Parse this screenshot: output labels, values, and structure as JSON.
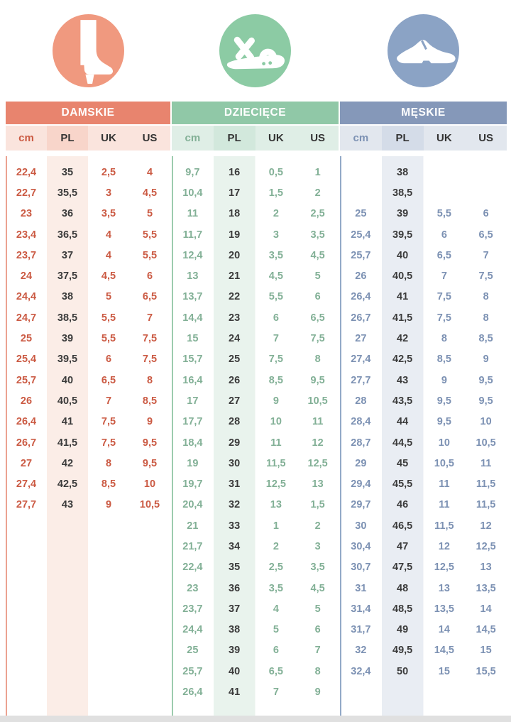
{
  "chart_data": [
    {
      "type": "table",
      "title": "DAMSKIE",
      "columns": [
        "cm",
        "PL",
        "UK",
        "US"
      ],
      "rows": [
        [
          "22,4",
          "35",
          "2,5",
          "4"
        ],
        [
          "22,7",
          "35,5",
          "3",
          "4,5"
        ],
        [
          "23",
          "36",
          "3,5",
          "5"
        ],
        [
          "23,4",
          "36,5",
          "4",
          "5,5"
        ],
        [
          "23,7",
          "37",
          "4",
          "5,5"
        ],
        [
          "24",
          "37,5",
          "4,5",
          "6"
        ],
        [
          "24,4",
          "38",
          "5",
          "6,5"
        ],
        [
          "24,7",
          "38,5",
          "5,5",
          "7"
        ],
        [
          "25",
          "39",
          "5,5",
          "7,5"
        ],
        [
          "25,4",
          "39,5",
          "6",
          "7,5"
        ],
        [
          "25,7",
          "40",
          "6,5",
          "8"
        ],
        [
          "26",
          "40,5",
          "7",
          "8,5"
        ],
        [
          "26,4",
          "41",
          "7,5",
          "9"
        ],
        [
          "26,7",
          "41,5",
          "7,5",
          "9,5"
        ],
        [
          "27",
          "42",
          "8",
          "9,5"
        ],
        [
          "27,4",
          "42,5",
          "8,5",
          "10"
        ],
        [
          "27,7",
          "43",
          "9",
          "10,5"
        ]
      ]
    },
    {
      "type": "table",
      "title": "DZIECIĘCE",
      "columns": [
        "cm",
        "PL",
        "UK",
        "US"
      ],
      "rows": [
        [
          "9,7",
          "16",
          "0,5",
          "1"
        ],
        [
          "10,4",
          "17",
          "1,5",
          "2"
        ],
        [
          "11",
          "18",
          "2",
          "2,5"
        ],
        [
          "11,7",
          "19",
          "3",
          "3,5"
        ],
        [
          "12,4",
          "20",
          "3,5",
          "4,5"
        ],
        [
          "13",
          "21",
          "4,5",
          "5"
        ],
        [
          "13,7",
          "22",
          "5,5",
          "6"
        ],
        [
          "14,4",
          "23",
          "6",
          "6,5"
        ],
        [
          "15",
          "24",
          "7",
          "7,5"
        ],
        [
          "15,7",
          "25",
          "7,5",
          "8"
        ],
        [
          "16,4",
          "26",
          "8,5",
          "9,5"
        ],
        [
          "17",
          "27",
          "9",
          "10,5"
        ],
        [
          "17,7",
          "28",
          "10",
          "11"
        ],
        [
          "18,4",
          "29",
          "11",
          "12"
        ],
        [
          "19",
          "30",
          "11,5",
          "12,5"
        ],
        [
          "19,7",
          "31",
          "12,5",
          "13"
        ],
        [
          "20,4",
          "32",
          "13",
          "1,5"
        ],
        [
          "21",
          "33",
          "1",
          "2"
        ],
        [
          "21,7",
          "34",
          "2",
          "3"
        ],
        [
          "22,4",
          "35",
          "2,5",
          "3,5"
        ],
        [
          "23",
          "36",
          "3,5",
          "4,5"
        ],
        [
          "23,7",
          "37",
          "4",
          "5"
        ],
        [
          "24,4",
          "38",
          "5",
          "6"
        ],
        [
          "25",
          "39",
          "6",
          "7"
        ],
        [
          "25,7",
          "40",
          "6,5",
          "8"
        ],
        [
          "26,4",
          "41",
          "7",
          "9"
        ]
      ]
    },
    {
      "type": "table",
      "title": "MĘSKIE",
      "columns": [
        "cm",
        "PL",
        "UK",
        "US"
      ],
      "rows": [
        [
          "",
          "38",
          "",
          ""
        ],
        [
          "",
          "38,5",
          "",
          ""
        ],
        [
          "25",
          "39",
          "5,5",
          "6"
        ],
        [
          "25,4",
          "39,5",
          "6",
          "6,5"
        ],
        [
          "25,7",
          "40",
          "6,5",
          "7"
        ],
        [
          "26",
          "40,5",
          "7",
          "7,5"
        ],
        [
          "26,4",
          "41",
          "7,5",
          "8"
        ],
        [
          "26,7",
          "41,5",
          "7,5",
          "8"
        ],
        [
          "27",
          "42",
          "8",
          "8,5"
        ],
        [
          "27,4",
          "42,5",
          "8,5",
          "9"
        ],
        [
          "27,7",
          "43",
          "9",
          "9,5"
        ],
        [
          "28",
          "43,5",
          "9,5",
          "9,5"
        ],
        [
          "28,4",
          "44",
          "9,5",
          "10"
        ],
        [
          "28,7",
          "44,5",
          "10",
          "10,5"
        ],
        [
          "29",
          "45",
          "10,5",
          "11"
        ],
        [
          "29,4",
          "45,5",
          "11",
          "11,5"
        ],
        [
          "29,7",
          "46",
          "11",
          "11,5"
        ],
        [
          "30",
          "46,5",
          "11,5",
          "12"
        ],
        [
          "30,4",
          "47",
          "12",
          "12,5"
        ],
        [
          "30,7",
          "47,5",
          "12,5",
          "13"
        ],
        [
          "31",
          "48",
          "13",
          "13,5"
        ],
        [
          "31,4",
          "48,5",
          "13,5",
          "14"
        ],
        [
          "31,7",
          "49",
          "14",
          "14,5"
        ],
        [
          "32",
          "49,5",
          "14,5",
          "15"
        ],
        [
          "32,4",
          "50",
          "15",
          "15,5"
        ]
      ]
    }
  ],
  "sections": [
    {
      "icon": "womens-boot-icon",
      "colors": {
        "header": "#E8846E",
        "icon_bg": "#F0997F",
        "subheader_bg": "#FAE4DD",
        "subheader_pl_bg": "#F8D5CA",
        "stripe_bg": "#FBEDE7",
        "value_text": "#CB5A43",
        "pl_text": "#3B3B3B",
        "accent_line": "#EBA291"
      }
    },
    {
      "icon": "childrens-sandal-icon",
      "colors": {
        "header": "#90C8A7",
        "icon_bg": "#8CCBA4",
        "subheader_bg": "#DFEEE6",
        "subheader_pl_bg": "#D2E8DC",
        "stripe_bg": "#E9F3ED",
        "value_text": "#82B096",
        "pl_text": "#3B3B3B",
        "accent_line": "#9CCBAE"
      }
    },
    {
      "icon": "mens-shoe-icon",
      "colors": {
        "header": "#8598B9",
        "icon_bg": "#8BA3C5",
        "subheader_bg": "#E2E7EE",
        "subheader_pl_bg": "#D4DCE8",
        "stripe_bg": "#E9EDF3",
        "value_text": "#7C91B3",
        "pl_text": "#3B3B3B",
        "accent_line": "#93A9C7"
      }
    }
  ],
  "page": {
    "bottom_bar_color": "#E0E0E0"
  }
}
